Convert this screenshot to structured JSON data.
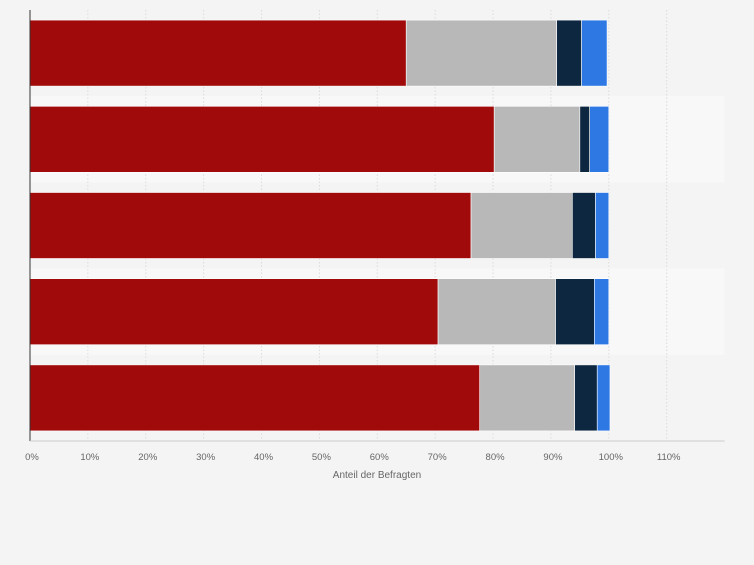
{
  "chart_data": {
    "type": "bar",
    "orientation": "horizontal",
    "stacked": true,
    "title": "",
    "xlabel": "Anteil der Befragten",
    "ylabel": "",
    "xlim": [
      0,
      120
    ],
    "x_ticks": [
      0,
      10,
      20,
      30,
      40,
      50,
      60,
      70,
      80,
      90,
      100,
      110
    ],
    "tick_format": "{v}%",
    "categories": [
      "",
      "",
      "",
      "",
      ""
    ],
    "series": [
      {
        "color": "#a10a0a",
        "values": [
          65.0,
          80.2,
          76.2,
          70.5,
          77.7
        ]
      },
      {
        "color": "#b8b8b8",
        "values": [
          26.0,
          14.8,
          17.5,
          20.3,
          16.4
        ]
      },
      {
        "color": "#0e2740",
        "values": [
          4.3,
          1.7,
          4.0,
          6.7,
          3.9
        ]
      },
      {
        "color": "#2d78e3",
        "values": [
          4.4,
          3.3,
          2.3,
          2.5,
          2.2
        ]
      }
    ],
    "grid": true,
    "legend": "none"
  }
}
